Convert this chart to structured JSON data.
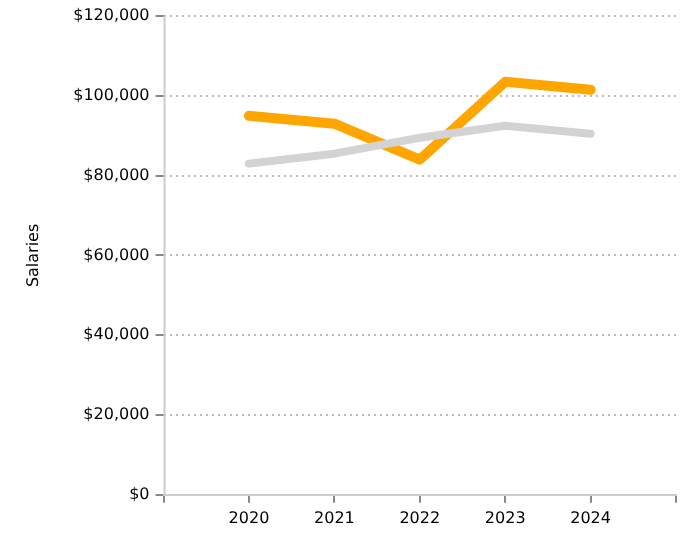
{
  "chart_data": {
    "type": "line",
    "ylabel": "Salaries",
    "x": [
      2020,
      2021,
      2022,
      2023,
      2024
    ],
    "series": [
      {
        "color": "#d3d3d3",
        "values": [
          83000,
          85500,
          89500,
          92500,
          90500
        ]
      },
      {
        "color": "#ffa500",
        "values": [
          95000,
          93000,
          84000,
          103500,
          101500
        ]
      }
    ],
    "xlim": [
      2019,
      2025
    ],
    "xticks": [
      {
        "value": 2019,
        "label": null
      },
      2020,
      2021,
      2022,
      2023,
      2024,
      {
        "value": 2025,
        "label": null
      }
    ],
    "ylim": [
      0,
      120000
    ],
    "yticks": [
      {
        "value": 0,
        "label": "$0"
      },
      {
        "value": 20000,
        "label": "$20,000"
      },
      {
        "value": 40000,
        "label": "$40,000"
      },
      {
        "value": 60000,
        "label": "$60,000"
      },
      {
        "value": 80000,
        "label": "$80,000"
      },
      {
        "value": 100000,
        "label": "$100,000"
      },
      {
        "value": 120000,
        "label": "$120,000"
      }
    ],
    "grid": "y",
    "legend": false,
    "marker": "none",
    "line_style": "solid"
  }
}
